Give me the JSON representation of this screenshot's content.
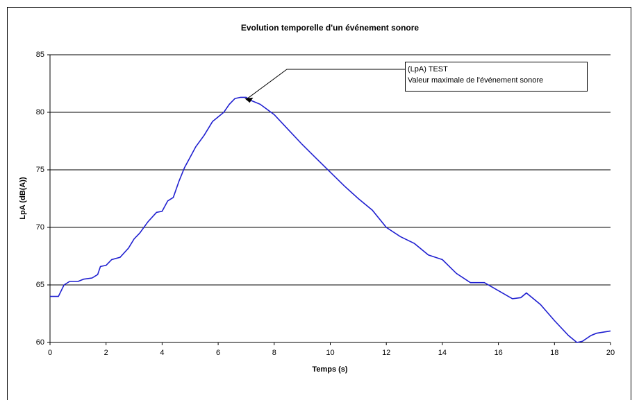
{
  "chart_data": {
    "type": "line",
    "title": "Evolution temporelle d'un événement sonore",
    "xlabel": "Temps (s)",
    "ylabel": "LpA (dB(A))",
    "x": [
      0,
      0.3,
      0.5,
      0.7,
      1,
      1.2,
      1.5,
      1.7,
      1.8,
      2,
      2.2,
      2.5,
      2.8,
      3,
      3.2,
      3.5,
      3.8,
      4,
      4.2,
      4.4,
      4.6,
      4.8,
      5,
      5.2,
      5.5,
      5.8,
      6,
      6.2,
      6.4,
      6.6,
      6.8,
      7,
      7.2,
      7.5,
      8,
      8.5,
      9,
      9.5,
      10,
      10.5,
      11,
      11.5,
      12,
      12.5,
      13,
      13.5,
      14,
      14.5,
      15,
      15.5,
      16,
      16.5,
      16.8,
      17,
      17.5,
      18,
      18.5,
      18.8,
      19,
      19.3,
      19.5,
      20
    ],
    "series": [
      {
        "name": "LpA",
        "color": "#1f1fd0",
        "values": [
          64,
          64,
          65.0,
          65.3,
          65.3,
          65.5,
          65.6,
          65.9,
          66.6,
          66.7,
          67.2,
          67.4,
          68.2,
          69.0,
          69.5,
          70.5,
          71.3,
          71.4,
          72.3,
          72.6,
          74.0,
          75.2,
          76.1,
          77.0,
          78.0,
          79.2,
          79.6,
          80.0,
          80.7,
          81.2,
          81.3,
          81.3,
          81.0,
          80.7,
          79.8,
          78.5,
          77.2,
          76.0,
          74.8,
          73.6,
          72.5,
          71.5,
          70.0,
          69.2,
          68.6,
          67.6,
          67.2,
          66.0,
          65.2,
          65.2,
          64.5,
          63.8,
          63.9,
          64.3,
          63.3,
          61.9,
          60.6,
          60.0,
          60.1,
          60.6,
          60.8,
          61.0
        ]
      }
    ],
    "xlim": [
      0,
      20
    ],
    "xticks": [
      0,
      2,
      4,
      6,
      8,
      10,
      12,
      14,
      16,
      18,
      20
    ],
    "ylim": [
      60,
      85
    ],
    "yticks": [
      60,
      65,
      70,
      75,
      80,
      85
    ],
    "grid": true,
    "annotation": {
      "lines": [
        "(LpA) TEST",
        "Valeur maximale de l'événement sonore"
      ],
      "x": 6.9,
      "y": 81.3
    }
  }
}
